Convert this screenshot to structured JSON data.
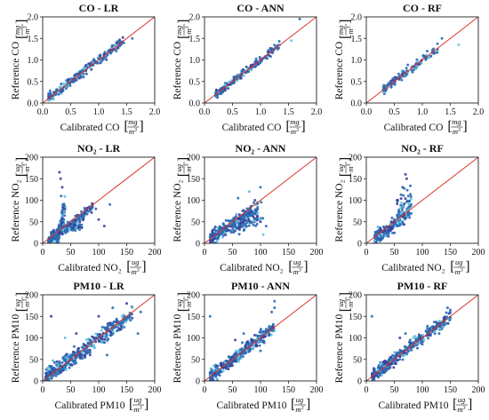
{
  "chart_data": [
    {
      "type": "scatter",
      "title": "CO - LR",
      "xlabel": "Calibrated CO",
      "ylabel": "Reference CO",
      "unit": "mg/m3",
      "xlim": [
        0,
        2
      ],
      "ylim": [
        0,
        2
      ],
      "xticks": [
        "0.0",
        "0.5",
        "1.0",
        "1.5",
        "2.0"
      ],
      "yticks": [
        "0.0",
        "0.5",
        "1.0",
        "1.5",
        "2.0"
      ],
      "reference_line": "y = x",
      "seed": 11,
      "points": [
        [
          0.12,
          0.18
        ],
        [
          0.2,
          0.25
        ],
        [
          0.3,
          0.32
        ],
        [
          0.45,
          0.42
        ],
        [
          0.55,
          0.55
        ],
        [
          0.7,
          0.68
        ],
        [
          0.9,
          0.88
        ],
        [
          1.1,
          1.05
        ],
        [
          1.3,
          1.25
        ],
        [
          1.6,
          1.5
        ],
        [
          0.25,
          0.3
        ],
        [
          0.6,
          0.6
        ],
        [
          0.85,
          0.82
        ]
      ],
      "clusters": [
        {
          "x": [
            0.1,
            1.45
          ],
          "spread": 0.08,
          "slope": 1.0,
          "intercept": 0.0,
          "n": 220
        }
      ]
    },
    {
      "type": "scatter",
      "title": "CO - ANN",
      "xlabel": "Calibrated CO",
      "ylabel": "Reference CO",
      "unit": "mg/m3",
      "xlim": [
        0,
        2
      ],
      "ylim": [
        0,
        2
      ],
      "xticks": [
        "0.0",
        "0.5",
        "1.0",
        "1.5",
        "2.0"
      ],
      "yticks": [
        "0.0",
        "0.5",
        "1.0",
        "1.5",
        "2.0"
      ],
      "reference_line": "y = x",
      "seed": 23,
      "points": [
        [
          0.25,
          0.25
        ],
        [
          0.4,
          0.38
        ],
        [
          0.6,
          0.62
        ],
        [
          0.8,
          0.78
        ],
        [
          1.0,
          0.95
        ],
        [
          1.2,
          1.2
        ],
        [
          1.55,
          1.45
        ],
        [
          1.7,
          1.95
        ]
      ],
      "clusters": [
        {
          "x": [
            0.2,
            1.35
          ],
          "spread": 0.07,
          "slope": 1.0,
          "intercept": 0.0,
          "n": 200
        }
      ]
    },
    {
      "type": "scatter",
      "title": "CO - RF",
      "xlabel": "Calibrated CO",
      "ylabel": "Reference CO",
      "unit": "mg/m3",
      "xlim": [
        0,
        2
      ],
      "ylim": [
        0,
        2
      ],
      "xticks": [
        "0.0",
        "0.5",
        "1.0",
        "1.5",
        "2.0"
      ],
      "yticks": [
        "0.0",
        "0.5",
        "1.0",
        "1.5",
        "2.0"
      ],
      "reference_line": "y = x",
      "seed": 37,
      "points": [
        [
          0.3,
          0.3
        ],
        [
          0.5,
          0.45
        ],
        [
          0.7,
          0.7
        ],
        [
          0.95,
          0.9
        ],
        [
          1.2,
          1.15
        ],
        [
          1.35,
          1.5
        ],
        [
          1.65,
          1.35
        ]
      ],
      "clusters": [
        {
          "x": [
            0.3,
            1.3
          ],
          "spread": 0.08,
          "slope": 1.0,
          "intercept": 0.0,
          "n": 120
        }
      ]
    },
    {
      "type": "scatter",
      "title": "NO₂ - LR",
      "xlabel": "Calibrated NO₂",
      "ylabel": "Reference NO₂",
      "unit": "ug/m3",
      "xlim": [
        0,
        200
      ],
      "ylim": [
        0,
        200
      ],
      "xticks": [
        "0",
        "50",
        "100",
        "150",
        "200"
      ],
      "yticks": [
        "0",
        "50",
        "100",
        "150",
        "200"
      ],
      "reference_line": "y = x",
      "seed": 41,
      "points": [
        [
          30,
          165
        ],
        [
          32,
          150
        ],
        [
          35,
          130
        ],
        [
          33,
          110
        ],
        [
          70,
          60
        ],
        [
          100,
          55
        ],
        [
          110,
          40
        ],
        [
          120,
          90
        ],
        [
          95,
          80
        ]
      ],
      "clusters": [
        {
          "x": [
            10,
            90
          ],
          "spread": 9,
          "slope": 1.0,
          "intercept": -5,
          "n": 200
        },
        {
          "x": [
            25,
            40
          ],
          "spread": 14,
          "slope": 6,
          "intercept": -150,
          "n": 140
        },
        {
          "x": [
            15,
            70
          ],
          "spread": 6,
          "slope": 0.35,
          "intercept": 15,
          "n": 90
        }
      ]
    },
    {
      "type": "scatter",
      "title": "NO₂ - ANN",
      "xlabel": "Calibrated NO₂",
      "ylabel": "Reference NO₂",
      "unit": "ug/m3",
      "xlim": [
        0,
        200
      ],
      "ylim": [
        0,
        200
      ],
      "xticks": [
        "0",
        "50",
        "100",
        "150",
        "200"
      ],
      "yticks": [
        "0",
        "50",
        "100",
        "150",
        "200"
      ],
      "reference_line": "y = x",
      "seed": 53,
      "points": [
        [
          80,
          120
        ],
        [
          90,
          100
        ],
        [
          100,
          130
        ],
        [
          100,
          55
        ],
        [
          110,
          40
        ],
        [
          105,
          20
        ],
        [
          95,
          70
        ],
        [
          60,
          105
        ]
      ],
      "clusters": [
        {
          "x": [
            10,
            95
          ],
          "spread": 14,
          "slope": 0.85,
          "intercept": 2,
          "n": 240
        },
        {
          "x": [
            60,
            105
          ],
          "spread": 20,
          "slope": 0.55,
          "intercept": 10,
          "n": 60
        }
      ]
    },
    {
      "type": "scatter",
      "title": "NO₂ - RF",
      "xlabel": "Calibrated NO₂",
      "ylabel": "Reference NO₂",
      "unit": "ug/m3",
      "xlim": [
        0,
        200
      ],
      "ylim": [
        0,
        200
      ],
      "xticks": [
        "0",
        "50",
        "100",
        "150",
        "200"
      ],
      "yticks": [
        "0",
        "50",
        "100",
        "150",
        "200"
      ],
      "reference_line": "y = x",
      "seed": 67,
      "points": [
        [
          70,
          160
        ],
        [
          65,
          130
        ],
        [
          75,
          110
        ],
        [
          80,
          90
        ],
        [
          55,
          100
        ],
        [
          72,
          150
        ]
      ],
      "clusters": [
        {
          "x": [
            15,
            80
          ],
          "spread": 13,
          "slope": 1.0,
          "intercept": -5,
          "n": 200
        },
        {
          "x": [
            55,
            80
          ],
          "spread": 25,
          "slope": 1.2,
          "intercept": 10,
          "n": 50
        }
      ]
    },
    {
      "type": "scatter",
      "title": "PM10 - LR",
      "xlabel": "Calibrated PM10",
      "ylabel": "Reference PM10",
      "unit": "ug/m3",
      "xlim": [
        0,
        200
      ],
      "ylim": [
        0,
        200
      ],
      "xticks": [
        "0",
        "50",
        "100",
        "150",
        "200"
      ],
      "yticks": [
        "0",
        "50",
        "100",
        "150",
        "200"
      ],
      "reference_line": "y = x",
      "seed": 79,
      "points": [
        [
          15,
          150
        ],
        [
          150,
          180
        ],
        [
          160,
          170
        ],
        [
          140,
          120
        ],
        [
          125,
          170
        ],
        [
          100,
          150
        ],
        [
          170,
          110
        ],
        [
          60,
          110
        ],
        [
          40,
          100
        ],
        [
          175,
          160
        ],
        [
          115,
          60
        ]
      ],
      "clusters": [
        {
          "x": [
            5,
            160
          ],
          "spread": 14,
          "slope": 0.95,
          "intercept": 3,
          "n": 420
        }
      ]
    },
    {
      "type": "scatter",
      "title": "PM10 - ANN",
      "xlabel": "Calibrated PM10",
      "ylabel": "Reference PM10",
      "unit": "ug/m3",
      "xlim": [
        0,
        200
      ],
      "ylim": [
        0,
        200
      ],
      "xticks": [
        "0",
        "50",
        "100",
        "150",
        "200"
      ],
      "yticks": [
        "0",
        "50",
        "100",
        "150",
        "200"
      ],
      "reference_line": "y = x",
      "seed": 83,
      "points": [
        [
          10,
          150
        ],
        [
          125,
          185
        ],
        [
          125,
          170
        ],
        [
          120,
          160
        ],
        [
          110,
          120
        ],
        [
          100,
          70
        ],
        [
          70,
          110
        ],
        [
          55,
          95
        ]
      ],
      "clusters": [
        {
          "x": [
            10,
            125
          ],
          "spread": 12,
          "slope": 1.0,
          "intercept": 0,
          "n": 380
        }
      ]
    },
    {
      "type": "scatter",
      "title": "PM10 - RF",
      "xlabel": "Calibrated PM10",
      "ylabel": "Reference PM10",
      "unit": "ug/m3",
      "xlim": [
        0,
        200
      ],
      "ylim": [
        0,
        200
      ],
      "xticks": [
        "0",
        "50",
        "100",
        "150",
        "200"
      ],
      "yticks": [
        "0",
        "50",
        "100",
        "150",
        "200"
      ],
      "reference_line": "y = x",
      "seed": 97,
      "points": [
        [
          10,
          150
        ],
        [
          145,
          170
        ],
        [
          150,
          165
        ],
        [
          140,
          130
        ],
        [
          130,
          110
        ],
        [
          100,
          85
        ],
        [
          70,
          110
        ],
        [
          60,
          100
        ]
      ],
      "clusters": [
        {
          "x": [
            10,
            150
          ],
          "spread": 11,
          "slope": 1.0,
          "intercept": 0,
          "n": 360
        }
      ]
    }
  ],
  "colors": {
    "points": "#2a6cb6",
    "points_dark": "#3a3f9a",
    "points_light": "#61c3df",
    "reference_line": "#d9342b",
    "axes": "#222222"
  }
}
